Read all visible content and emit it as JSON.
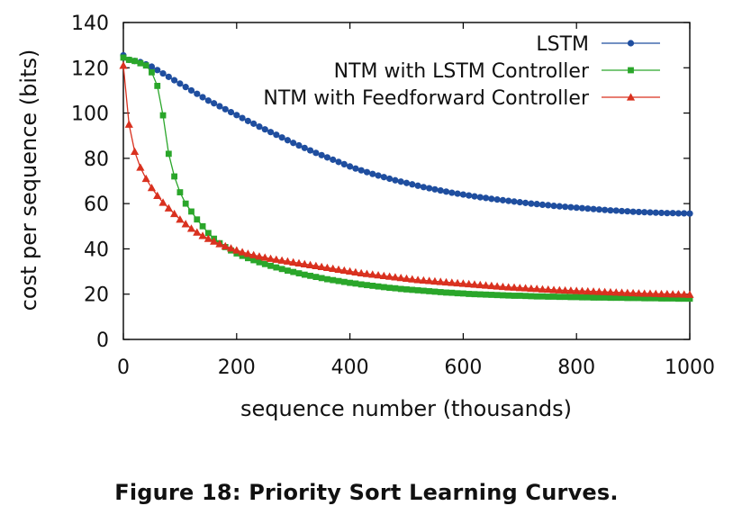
{
  "figure": {
    "caption": "Figure 18: Priority Sort Learning Curves."
  },
  "chart_data": {
    "type": "line",
    "title": "",
    "xlabel": "sequence number (thousands)",
    "ylabel": "cost per sequence (bits)",
    "xlim": [
      0,
      1000
    ],
    "ylim": [
      0,
      140
    ],
    "xticks": [
      0,
      200,
      400,
      600,
      800,
      1000
    ],
    "yticks": [
      0,
      20,
      40,
      60,
      80,
      100,
      120,
      140
    ],
    "grid": false,
    "legend_position": "top-right",
    "series": [
      {
        "name": "LSTM",
        "color": "#1f4e9f",
        "marker": "circle",
        "x": [
          0,
          10,
          20,
          30,
          40,
          50,
          60,
          70,
          80,
          90,
          100,
          110,
          120,
          130,
          140,
          150,
          160,
          170,
          180,
          190,
          200,
          210,
          220,
          230,
          240,
          250,
          260,
          270,
          280,
          290,
          300,
          310,
          320,
          330,
          340,
          350,
          360,
          370,
          380,
          390,
          400,
          410,
          420,
          430,
          440,
          450,
          460,
          470,
          480,
          490,
          500,
          510,
          520,
          530,
          540,
          550,
          560,
          570,
          580,
          590,
          600,
          610,
          620,
          630,
          640,
          650,
          660,
          670,
          680,
          690,
          700,
          710,
          720,
          730,
          740,
          750,
          760,
          770,
          780,
          790,
          800,
          810,
          820,
          830,
          840,
          850,
          860,
          870,
          880,
          890,
          900,
          910,
          920,
          930,
          940,
          950,
          960,
          970,
          980,
          990,
          1000
        ],
        "y": [
          125.5,
          123.5,
          123.0,
          122.5,
          121.5,
          120.5,
          119.0,
          117.5,
          116.0,
          114.5,
          113.0,
          111.5,
          110.0,
          108.5,
          107.0,
          105.5,
          104.3,
          103.0,
          101.7,
          100.4,
          99.1,
          97.8,
          96.5,
          95.3,
          94.0,
          92.8,
          91.6,
          90.4,
          89.2,
          88.0,
          86.8,
          85.7,
          84.6,
          83.5,
          82.4,
          81.4,
          80.4,
          79.4,
          78.4,
          77.4,
          76.4,
          75.5,
          74.7,
          73.9,
          73.1,
          72.4,
          71.7,
          71.0,
          70.3,
          69.7,
          69.1,
          68.5,
          67.9,
          67.3,
          66.8,
          66.3,
          65.8,
          65.3,
          64.8,
          64.4,
          64.0,
          63.6,
          63.2,
          62.8,
          62.5,
          62.1,
          61.8,
          61.5,
          61.2,
          60.9,
          60.6,
          60.3,
          60.0,
          59.8,
          59.5,
          59.3,
          59.0,
          58.8,
          58.6,
          58.4,
          58.2,
          58.0,
          57.8,
          57.6,
          57.4,
          57.2,
          57.0,
          56.9,
          56.7,
          56.6,
          56.4,
          56.3,
          56.2,
          56.1,
          56.0,
          55.9,
          55.8,
          55.8,
          55.7,
          55.7,
          55.6
        ]
      },
      {
        "name": "NTM with LSTM Controller",
        "color": "#2aa62a",
        "marker": "square",
        "x": [
          0,
          10,
          20,
          30,
          40,
          50,
          60,
          70,
          80,
          90,
          100,
          110,
          120,
          130,
          140,
          150,
          160,
          170,
          180,
          190,
          200,
          210,
          220,
          230,
          240,
          250,
          260,
          270,
          280,
          290,
          300,
          310,
          320,
          330,
          340,
          350,
          360,
          370,
          380,
          390,
          400,
          410,
          420,
          430,
          440,
          450,
          460,
          470,
          480,
          490,
          500,
          510,
          520,
          530,
          540,
          550,
          560,
          570,
          580,
          590,
          600,
          610,
          620,
          630,
          640,
          650,
          660,
          670,
          680,
          690,
          700,
          710,
          720,
          730,
          740,
          750,
          760,
          770,
          780,
          790,
          800,
          810,
          820,
          830,
          840,
          850,
          860,
          870,
          880,
          890,
          900,
          910,
          920,
          930,
          940,
          950,
          960,
          970,
          980,
          990,
          1000
        ],
        "y": [
          124.5,
          123.5,
          123.0,
          122.0,
          121.0,
          118.0,
          112.0,
          99.0,
          82.0,
          72.0,
          65.0,
          60.0,
          56.5,
          53.0,
          50.0,
          47.0,
          44.5,
          42.5,
          40.8,
          39.3,
          38.0,
          36.9,
          35.9,
          35.0,
          34.1,
          33.3,
          32.5,
          31.8,
          31.1,
          30.4,
          29.8,
          29.2,
          28.6,
          28.1,
          27.6,
          27.1,
          26.6,
          26.2,
          25.8,
          25.4,
          25.0,
          24.7,
          24.3,
          24.0,
          23.7,
          23.4,
          23.1,
          22.8,
          22.6,
          22.3,
          22.1,
          21.9,
          21.7,
          21.5,
          21.3,
          21.1,
          20.9,
          20.7,
          20.6,
          20.4,
          20.3,
          20.1,
          20.0,
          19.9,
          19.8,
          19.7,
          19.6,
          19.5,
          19.4,
          19.3,
          19.3,
          19.2,
          19.1,
          19.0,
          19.0,
          18.9,
          18.9,
          18.8,
          18.8,
          18.7,
          18.7,
          18.6,
          18.6,
          18.5,
          18.5,
          18.5,
          18.4,
          18.4,
          18.4,
          18.3,
          18.3,
          18.3,
          18.2,
          18.2,
          18.2,
          18.1,
          18.1,
          18.1,
          18.0,
          18.0,
          18.0
        ]
      },
      {
        "name": "NTM with Feedforward Controller",
        "color": "#d9311f",
        "marker": "triangle",
        "x": [
          0,
          10,
          20,
          30,
          40,
          50,
          60,
          70,
          80,
          90,
          100,
          110,
          120,
          130,
          140,
          150,
          160,
          170,
          180,
          190,
          200,
          210,
          220,
          230,
          240,
          250,
          260,
          270,
          280,
          290,
          300,
          310,
          320,
          330,
          340,
          350,
          360,
          370,
          380,
          390,
          400,
          410,
          420,
          430,
          440,
          450,
          460,
          470,
          480,
          490,
          500,
          510,
          520,
          530,
          540,
          550,
          560,
          570,
          580,
          590,
          600,
          610,
          620,
          630,
          640,
          650,
          660,
          670,
          680,
          690,
          700,
          710,
          720,
          730,
          740,
          750,
          760,
          770,
          780,
          790,
          800,
          810,
          820,
          830,
          840,
          850,
          860,
          870,
          880,
          890,
          900,
          910,
          920,
          930,
          940,
          950,
          960,
          970,
          980,
          990,
          1000
        ],
        "y": [
          121.0,
          95.0,
          83.0,
          76.0,
          71.0,
          67.0,
          63.5,
          60.5,
          58.0,
          55.5,
          53.0,
          51.0,
          49.0,
          47.3,
          45.8,
          44.5,
          43.3,
          42.2,
          41.2,
          40.3,
          39.4,
          38.6,
          37.9,
          37.3,
          36.7,
          36.2,
          35.7,
          35.3,
          34.9,
          34.5,
          34.1,
          33.7,
          33.3,
          32.9,
          32.5,
          32.1,
          31.7,
          31.3,
          30.9,
          30.5,
          30.1,
          29.7,
          29.3,
          29.0,
          28.7,
          28.4,
          28.1,
          27.8,
          27.5,
          27.2,
          26.9,
          26.6,
          26.3,
          26.1,
          25.9,
          25.7,
          25.5,
          25.3,
          25.1,
          24.9,
          24.7,
          24.5,
          24.3,
          24.1,
          23.9,
          23.7,
          23.5,
          23.3,
          23.1,
          23.0,
          22.8,
          22.7,
          22.5,
          22.4,
          22.2,
          22.1,
          21.9,
          21.8,
          21.7,
          21.6,
          21.5,
          21.4,
          21.3,
          21.2,
          21.1,
          21.0,
          20.9,
          20.8,
          20.7,
          20.6,
          20.5,
          20.4,
          20.3,
          20.3,
          20.2,
          20.1,
          20.1,
          20.0,
          20.0,
          19.9,
          19.8
        ]
      }
    ]
  }
}
